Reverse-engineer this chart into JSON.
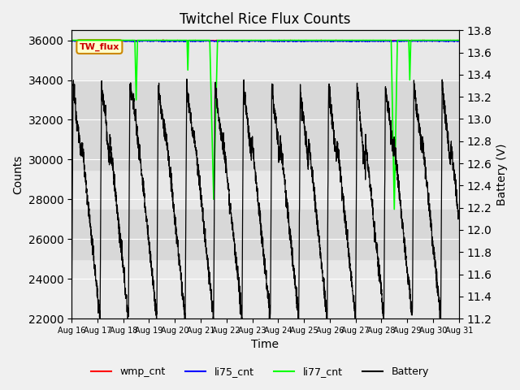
{
  "title": "Twitchel Rice Flux Counts",
  "xlabel": "Time",
  "ylabel_left": "Counts",
  "ylabel_right": "Battery (V)",
  "xlim": [
    0,
    15.0
  ],
  "ylim_left": [
    22000,
    36500
  ],
  "ylim_right": [
    11.2,
    13.8
  ],
  "yticks_left": [
    22000,
    24000,
    26000,
    28000,
    30000,
    32000,
    34000,
    36000
  ],
  "yticks_right": [
    11.2,
    11.4,
    11.6,
    11.8,
    12.0,
    12.2,
    12.4,
    12.6,
    12.8,
    13.0,
    13.2,
    13.4,
    13.6,
    13.8
  ],
  "xtick_labels": [
    "Aug 16",
    "Aug 17",
    "Aug 18",
    "Aug 19",
    "Aug 20",
    "Aug 21",
    "Aug 22",
    "Aug 23",
    "Aug 24",
    "Aug 25",
    "Aug 26",
    "Aug 27",
    "Aug 28",
    "Aug 29",
    "Aug 30",
    "Aug 31"
  ],
  "background_color": "#f0f0f0",
  "plot_bg_color": "#e8e8e8",
  "grid_color": "#ffffff",
  "shaded_band1": [
    29500,
    34000
  ],
  "shaded_band2": [
    25000,
    27500
  ],
  "annotation_box_text": "TW_flux",
  "annotation_box_facecolor": "#ffffcc",
  "annotation_box_edgecolor": "#cc8800"
}
